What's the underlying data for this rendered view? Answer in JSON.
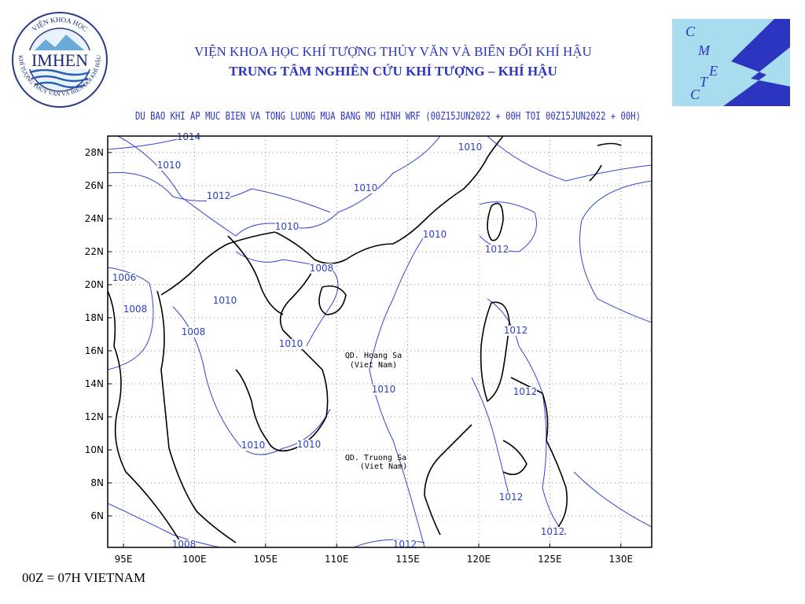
{
  "header": {
    "line1": "VIỆN KHOA HỌC KHÍ TƯỢNG THỦY VĂN VÀ BIẾN ĐỔI KHÍ HẬU",
    "line2": "TRUNG TÂM NGHIÊN CỨU KHÍ TƯỢNG – KHÍ HẬU"
  },
  "logo_left": {
    "name": "IMHEN",
    "ring_top": "VIỆN KHOA HỌC",
    "ring_bottom": "KHÍ TƯỢNG THỦY VĂN VÀ BIẾN ĐỔI KHÍ HẬU"
  },
  "logo_right": {
    "letters": [
      "C",
      "M",
      "E",
      "T",
      "C"
    ]
  },
  "map": {
    "title": "DU BAO KHI AP MUC BIEN VA TONG LUONG MUA BANG MO HINH WRF (00Z15JUN2022 + 00H TOI 00Z15JUN2022 + 00H)",
    "lat_labels": [
      "28N",
      "26N",
      "24N",
      "22N",
      "20N",
      "18N",
      "16N",
      "14N",
      "12N",
      "10N",
      "8N",
      "6N"
    ],
    "lon_labels": [
      "95E",
      "100E",
      "105E",
      "110E",
      "115E",
      "120E",
      "125E",
      "130E"
    ],
    "contour_labels": [
      "1014",
      "1010",
      "1012",
      "1010",
      "1010",
      "1010",
      "1010",
      "1012",
      "1008",
      "1006",
      "1010",
      "1008",
      "1008",
      "1010",
      "1012",
      "1010",
      "1012",
      "1010",
      "1010",
      "1012",
      "1012",
      "1008",
      "1012"
    ],
    "places": [
      {
        "name": "QD. Hoang Sa",
        "country": "(Viet Nam)"
      },
      {
        "name": "QD. Truong Sa",
        "country": "(Viet Nam)"
      }
    ]
  },
  "footer": "00Z = 07H VIETNAM"
}
